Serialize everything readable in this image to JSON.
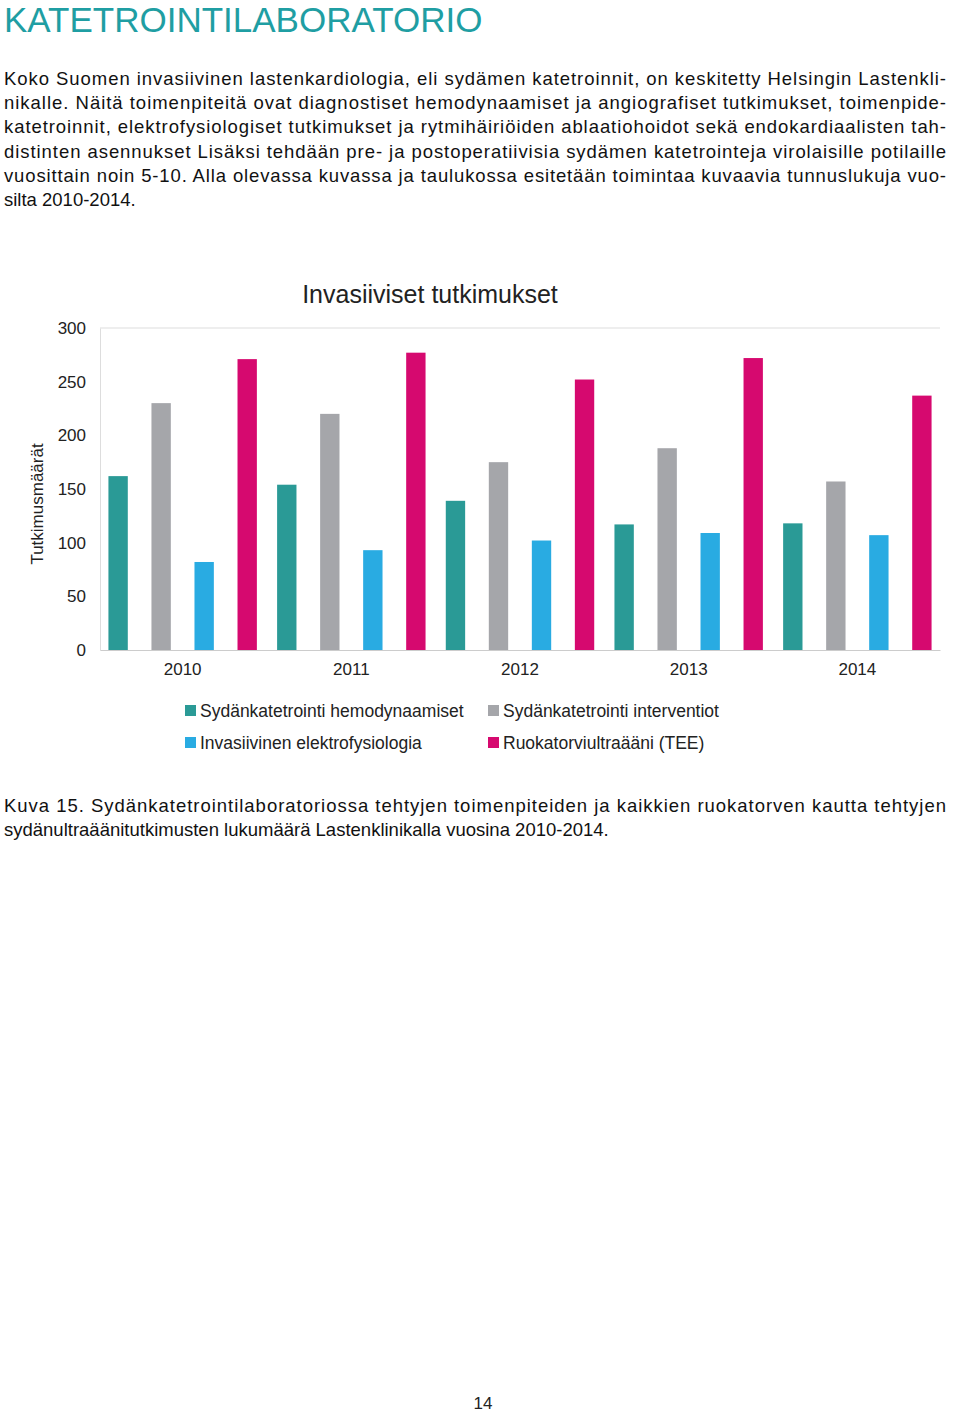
{
  "heading": "KATETROINTILABORATORIO",
  "paragraph": [
    "Koko Suomen invasiivinen lastenkardiologia, eli sydämen katetroinnit, on keskitetty Helsingin Lastenkli-",
    "nikalle. Näitä toimenpiteitä ovat diagnostiset hemodynaamiset ja angiografiset tutkimukset, toimenpide-",
    "katetroinnit, elektrofysiologiset tutkimukset ja rytmihäiriöiden ablaatiohoidot sekä endokardiaalisten tah-",
    "distinten asennukset Lisäksi tehdään pre- ja postoperatiivisia sydämen katetrointeja virolaisille potilaille",
    "vuosittain noin 5-10. Alla olevassa kuvassa ja taulukossa esitetään toimintaa kuvaavia tunnuslukuja vuo-",
    "silta 2010-2014."
  ],
  "chart_data": {
    "type": "bar",
    "title": "Invasiiviset tutkimukset",
    "y_label": "Tutkimusmäärät",
    "categories": [
      "2010",
      "2011",
      "2012",
      "2013",
      "2014"
    ],
    "series": [
      {
        "name": "Sydänkatetrointi hemodynaamiset",
        "color": "#2a9a96",
        "values": [
          162,
          154,
          139,
          117,
          118
        ]
      },
      {
        "name": "Sydänkatetrointi interventiot",
        "color": "#a5a6aa",
        "values": [
          230,
          220,
          175,
          188,
          157
        ]
      },
      {
        "name": "Invasiivinen elektrofysiologia",
        "color": "#29abe2",
        "values": [
          82,
          93,
          102,
          109,
          107
        ]
      },
      {
        "name": "Ruokatorviultraääni (TEE)",
        "color": "#d6096f",
        "values": [
          271,
          277,
          252,
          272,
          237
        ]
      }
    ],
    "ylim": [
      0,
      300
    ],
    "yticks": [
      0,
      50,
      100,
      150,
      200,
      250,
      300
    ],
    "grid": false,
    "legend": "bottom"
  },
  "caption": [
    "Kuva 15. Sydänkatetrointilaboratoriossa tehtyjen toimenpiteiden ja kaikkien ruokatorven kautta tehtyjen",
    "sydänultraäänitutkimusten lukumäärä Lastenklinikalla vuosina 2010-2014."
  ],
  "page_number": 14
}
